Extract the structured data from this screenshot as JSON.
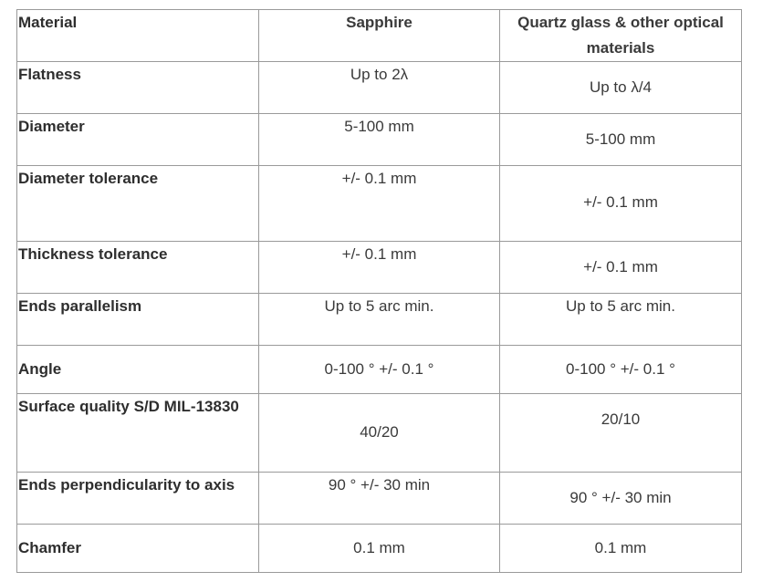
{
  "table": {
    "headers": [
      "Material",
      "Sapphire",
      "Quartz glass & other optical materials"
    ],
    "rows": [
      {
        "label": "Flatness",
        "sapphire": "Up to 2λ",
        "quartz": "Up to λ/4"
      },
      {
        "label": "Diameter",
        "sapphire": "5-100 mm",
        "quartz": "5-100 mm"
      },
      {
        "label": "Diameter tolerance",
        "sapphire": "+/- 0.1 mm",
        "quartz": "+/- 0.1 mm"
      },
      {
        "label": "Thickness tolerance",
        "sapphire": "+/- 0.1 mm",
        "quartz": "+/- 0.1 mm"
      },
      {
        "label": "Ends parallelism",
        "sapphire": "Up to 5 arc min.",
        "quartz": "Up to 5 arc min."
      },
      {
        "label": "Angle",
        "sapphire": "0-100 ° +/- 0.1 °",
        "quartz": "0-100 ° +/- 0.1 °"
      },
      {
        "label": "Surface quality S/D MIL-13830",
        "sapphire": "40/20",
        "quartz": "20/10"
      },
      {
        "label": "Ends perpendicularity to axis",
        "sapphire": "90 ° +/- 30 min",
        "quartz": "90 ° +/- 30 min"
      },
      {
        "label": "Chamfer",
        "sapphire": "0.1 mm",
        "quartz": "0.1 mm"
      }
    ]
  }
}
